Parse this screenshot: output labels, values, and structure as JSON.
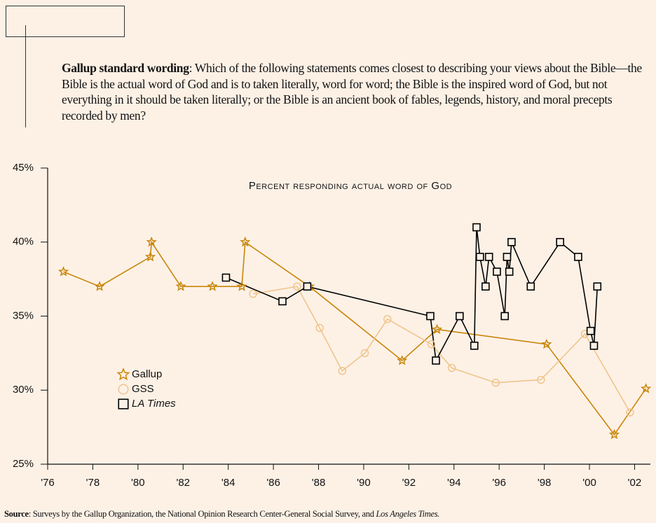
{
  "header": {
    "bold": "Gallup standard wording",
    "text": ": Which of the following statements comes closest to describing your views about the Bible—the Bible is the actual word of God and is to taken literally, word for word; the Bible is the inspired word of God, but not everything in it should be taken literally; or the Bible is an ancient book of fables, legends, history, and moral precepts recorded by men?"
  },
  "chart_data": {
    "type": "line",
    "title": "Percent responding actual word of God",
    "xlim": [
      1976,
      2002.7
    ],
    "xticks": [
      {
        "value": 1976,
        "label": "'76"
      },
      {
        "value": 1978,
        "label": "'78"
      },
      {
        "value": 1980,
        "label": "'80"
      },
      {
        "value": 1982,
        "label": "'82"
      },
      {
        "value": 1984,
        "label": "'84"
      },
      {
        "value": 1986,
        "label": "'86"
      },
      {
        "value": 1988,
        "label": "'88"
      },
      {
        "value": 1990,
        "label": "'90"
      },
      {
        "value": 1992,
        "label": "'92"
      },
      {
        "value": 1994,
        "label": "'94"
      },
      {
        "value": 1996,
        "label": "'96"
      },
      {
        "value": 1998,
        "label": "'98"
      },
      {
        "value": 2000,
        "label": "'00"
      },
      {
        "value": 2002,
        "label": "'02"
      }
    ],
    "ylim": [
      25,
      45
    ],
    "yticks": [
      {
        "value": 25,
        "label": "25%"
      },
      {
        "value": 30,
        "label": "30%"
      },
      {
        "value": 35,
        "label": "35%"
      },
      {
        "value": 40,
        "label": "40%"
      },
      {
        "value": 45,
        "label": "45%"
      }
    ],
    "series": [
      {
        "name": "Gallup",
        "color": "#c8860a",
        "marker": "star",
        "x": [
          1976.7,
          1978.3,
          1980.55,
          1980.6,
          1981.9,
          1983.3,
          1984.6,
          1984.75,
          1987.6,
          1991.7,
          1993.25,
          1998.1,
          2001.1,
          2002.5
        ],
        "values": [
          38,
          37,
          39,
          40,
          37,
          37,
          37,
          40,
          37,
          32,
          34.1,
          33.1,
          27,
          30.1
        ]
      },
      {
        "name": "GSS",
        "color": "#efc58c",
        "marker": "circle",
        "x": [
          1985.1,
          1987.05,
          1988.05,
          1989.05,
          1990.05,
          1991.05,
          1993.0,
          1993.9,
          1995.85,
          1997.85,
          1999.8,
          2001.8
        ],
        "values": [
          36.5,
          37,
          34.2,
          31.3,
          32.5,
          34.8,
          33.1,
          31.5,
          30.5,
          30.7,
          33.8,
          28.5
        ]
      },
      {
        "name": "LA Times",
        "color": "#000000",
        "marker": "square",
        "x": [
          1983.9,
          1986.4,
          1987.5,
          1992.95,
          1993.2,
          1994.25,
          1994.9,
          1995.0,
          1995.15,
          1995.4,
          1995.55,
          1995.9,
          1996.25,
          1996.35,
          1996.45,
          1996.55,
          1997.4,
          1998.7,
          1999.5,
          2000.05,
          2000.2,
          2000.35
        ],
        "values": [
          37.6,
          36,
          37,
          35,
          32,
          35,
          33,
          41,
          39,
          37,
          39,
          38,
          35,
          39,
          38,
          40,
          37,
          40,
          39,
          34,
          33,
          37
        ]
      }
    ]
  },
  "source": {
    "label": "Source",
    "text": ": Surveys by the Gallup Organization, the National Opinion Research Center-General Social Survey, and ",
    "italic": "Los Angeles Times."
  }
}
